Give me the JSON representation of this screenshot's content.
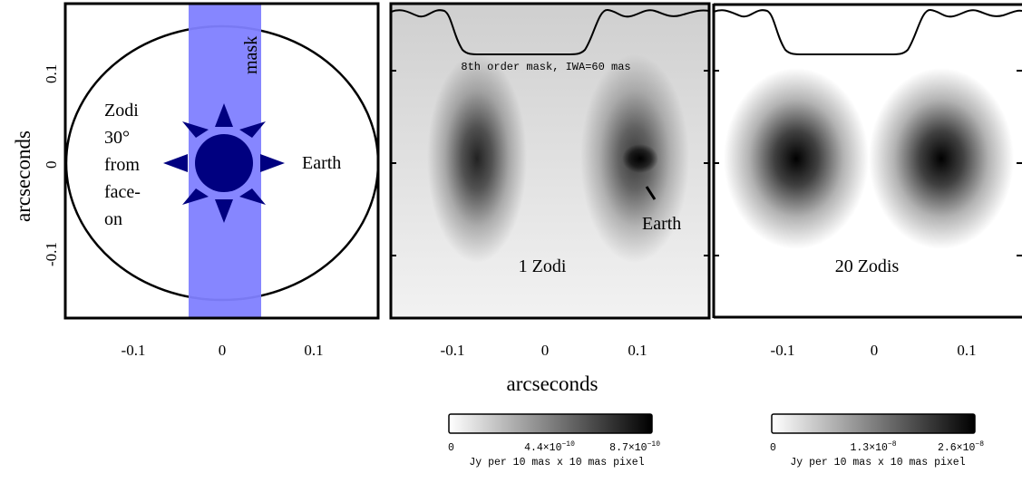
{
  "y_ticks": [
    "0.1",
    "0",
    "-0.1"
  ],
  "y_axis_label": "arcseconds",
  "x_axis_label": "arcseconds",
  "panels": [
    {
      "x_ticks": [
        "-0.1",
        "0",
        "0.1"
      ],
      "mask_label": "mask",
      "zodi_label_lines": [
        "Zodi",
        "30°",
        "from",
        "face-",
        "on"
      ],
      "earth_label": "Earth",
      "colors": {
        "mask": "#8080ff",
        "star": "#000080",
        "frame": "#000000"
      }
    },
    {
      "x_ticks": [
        "-0.1",
        "0",
        "0.1"
      ],
      "mask_title": "8th order mask, IWA=60 mas",
      "panel_label": "1 Zodi",
      "earth_label": "Earth",
      "colorbar": {
        "min": "0",
        "mid": "4.4×10",
        "mid_exp": "−10",
        "max": "8.7×10",
        "max_exp": "−10",
        "units": "Jy per 10 mas x 10 mas pixel"
      }
    },
    {
      "x_ticks": [
        "-0.1",
        "0",
        "0.1"
      ],
      "panel_label": "20 Zodis",
      "colorbar": {
        "min": "0",
        "mid": "1.3×10",
        "mid_exp": "−8",
        "max": "2.6×10",
        "max_exp": "−8",
        "units": "Jy per 10 mas x 10 mas pixel"
      }
    }
  ]
}
